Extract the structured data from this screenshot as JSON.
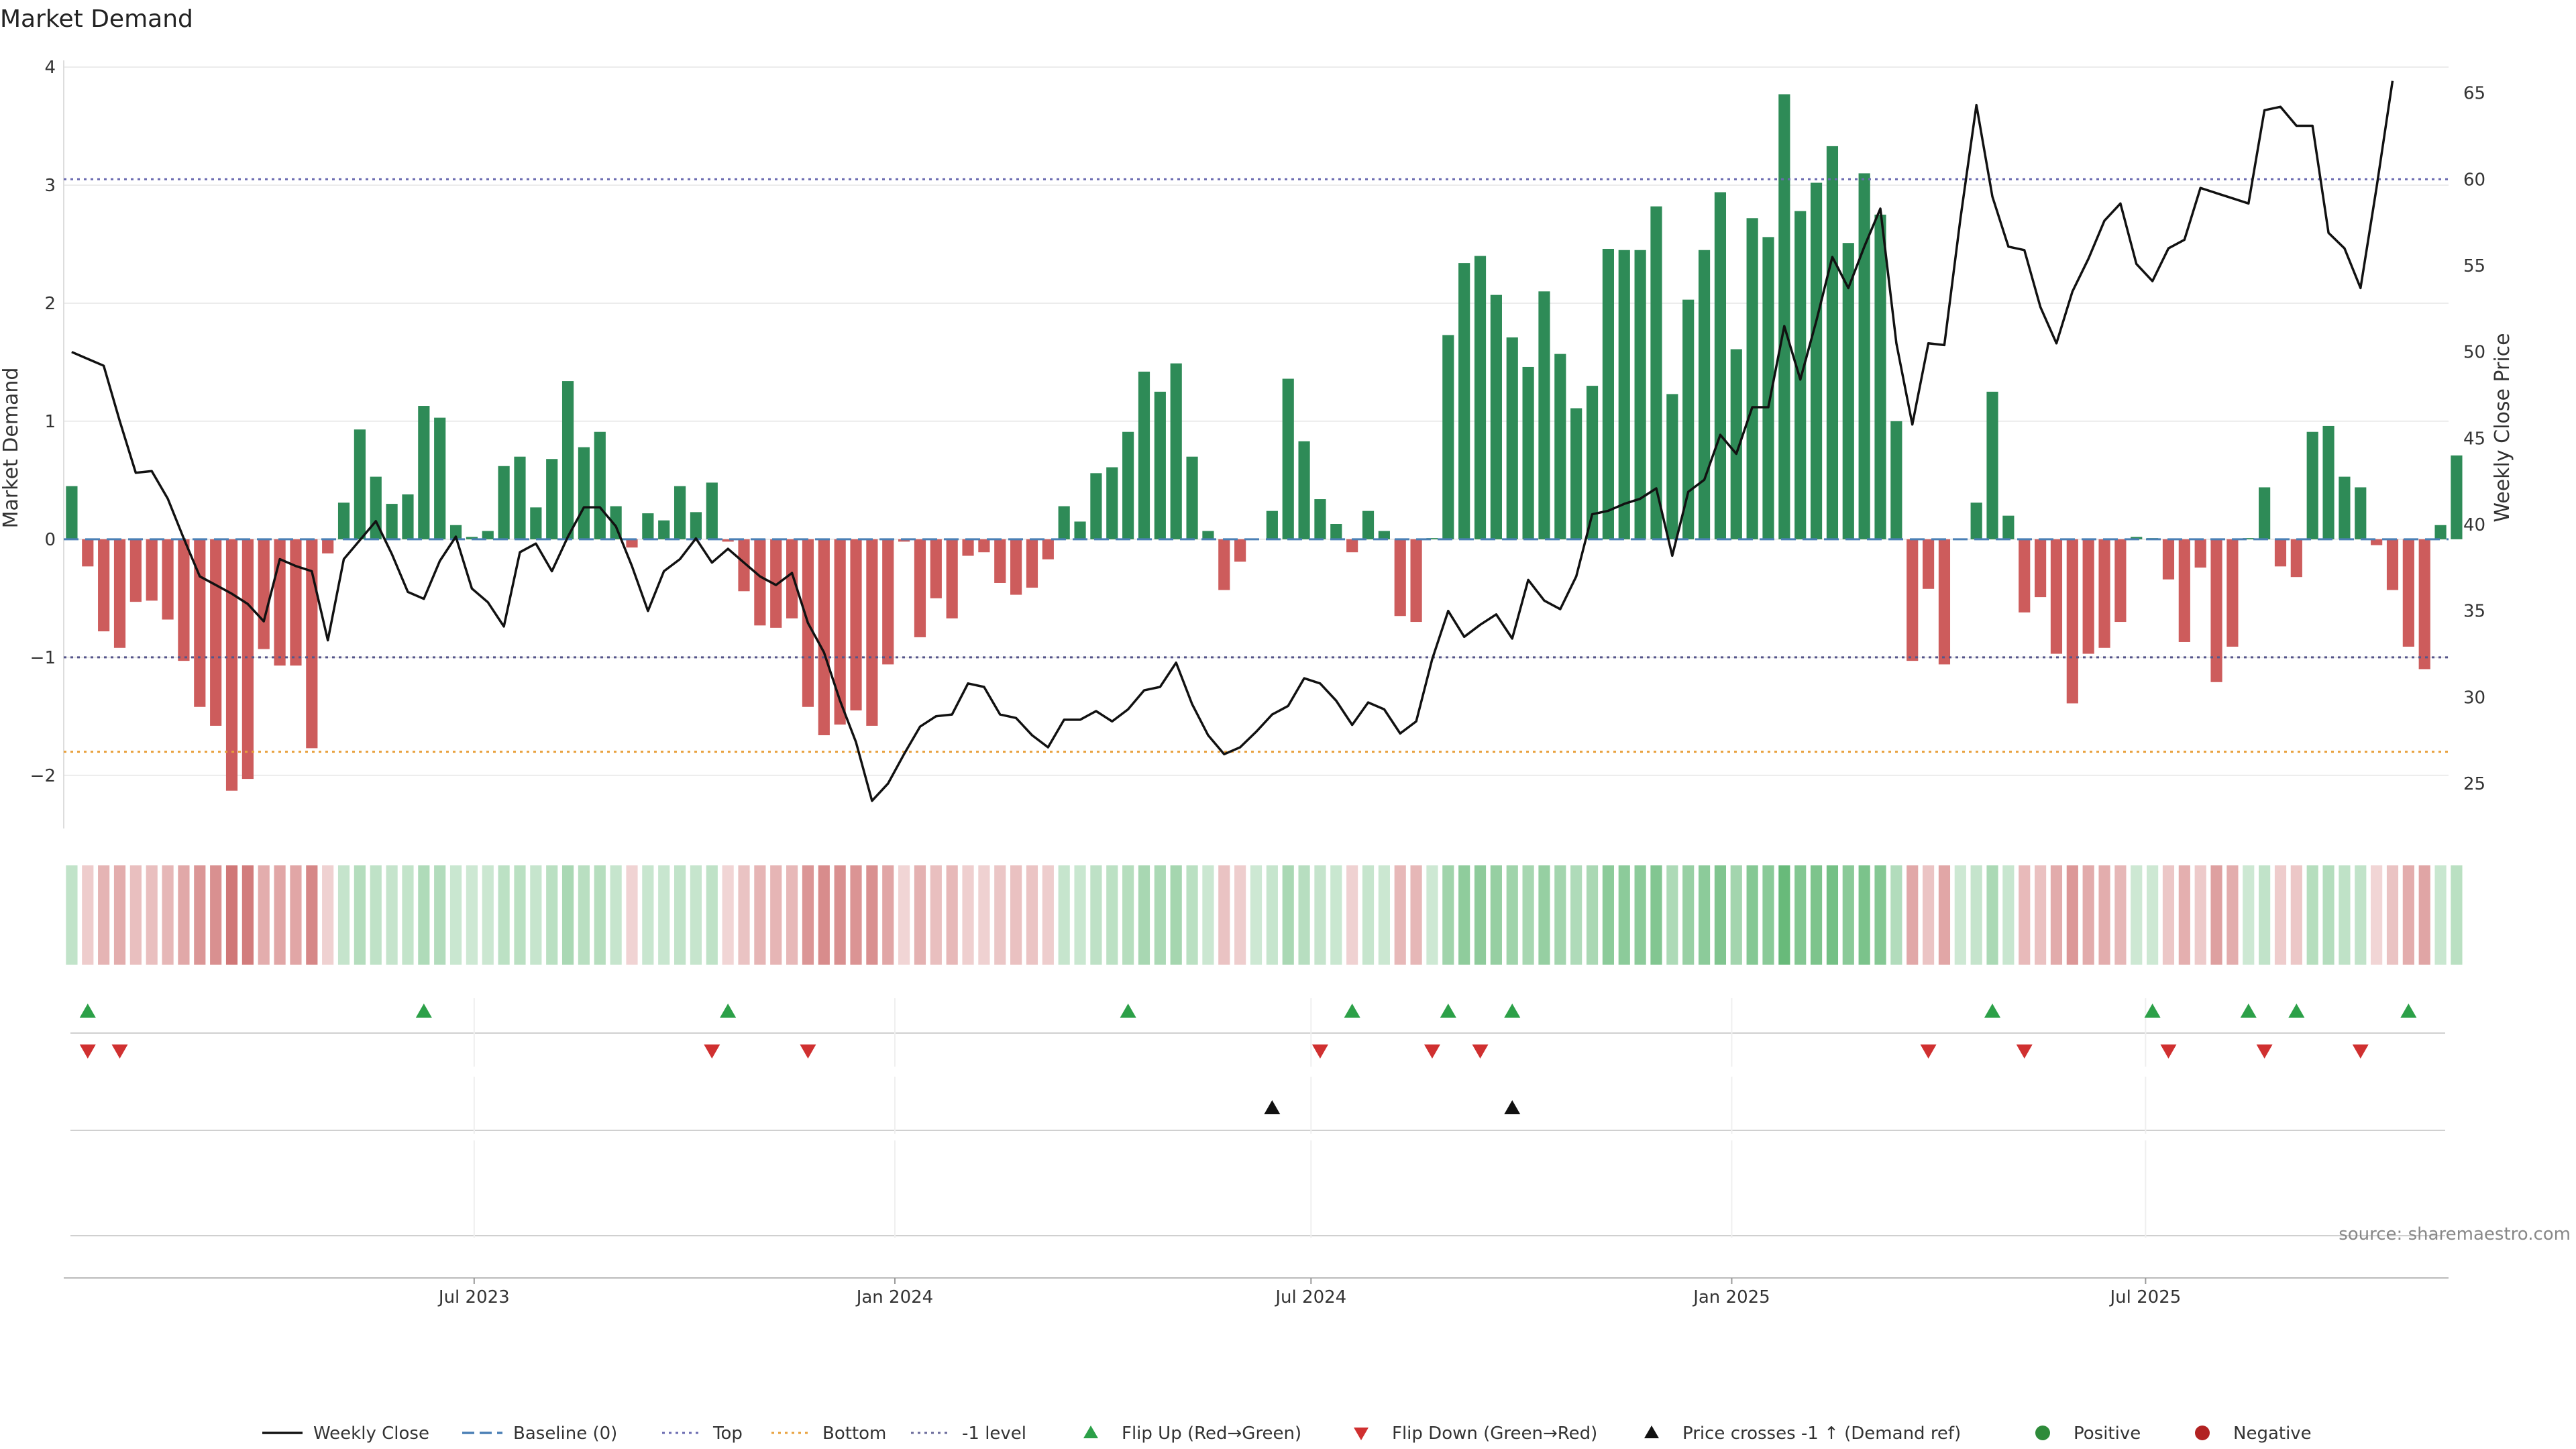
{
  "chart_data": {
    "type": "bar",
    "title": "Market Demand",
    "ylabel": "Market Demand",
    "y2label": "Weekly Close Price",
    "ylim": [
      -2.45,
      4.0
    ],
    "y2lim": [
      22.4,
      66.5
    ],
    "yticks": [
      "4",
      "3",
      "2",
      "1",
      "0",
      "−1",
      "−2"
    ],
    "y2ticks": [
      "65",
      "60",
      "55",
      "50",
      "45",
      "40",
      "35",
      "30",
      "25"
    ],
    "x_start": "2023-01-06",
    "x_step_days": 7,
    "x_end": "2025-11-07",
    "xticks": [
      {
        "label": "Jul 2023",
        "date": "2023-07-01"
      },
      {
        "label": "Jan 2024",
        "date": "2024-01-01"
      },
      {
        "label": "Jul 2024",
        "date": "2024-07-01"
      },
      {
        "label": "Jan 2025",
        "date": "2025-01-01"
      },
      {
        "label": "Jul 2025",
        "date": "2025-07-01"
      }
    ],
    "reference_lines": {
      "baseline": 0,
      "top": 3.05,
      "bottom": -1.8,
      "minus_one": -1.0
    },
    "series": [
      {
        "name": "Market Demand",
        "type": "bar",
        "values": [
          0.45,
          -0.23,
          -0.78,
          -0.92,
          -0.53,
          -0.52,
          -0.68,
          -1.03,
          -1.42,
          -1.58,
          -2.13,
          -2.03,
          -0.93,
          -1.07,
          -1.07,
          -1.77,
          -0.12,
          0.31,
          0.93,
          0.53,
          0.3,
          0.38,
          1.13,
          1.03,
          0.12,
          0.02,
          0.07,
          0.62,
          0.7,
          0.27,
          0.68,
          1.34,
          0.78,
          0.91,
          0.28,
          -0.07,
          0.22,
          0.16,
          0.45,
          0.23,
          0.48,
          -0.02,
          -0.44,
          -0.73,
          -0.75,
          -0.67,
          -1.42,
          -1.66,
          -1.57,
          -1.45,
          -1.58,
          -1.06,
          -0.02,
          -0.83,
          -0.5,
          -0.67,
          -0.14,
          -0.11,
          -0.37,
          -0.47,
          -0.41,
          -0.17,
          0.28,
          0.15,
          0.56,
          0.61,
          0.91,
          1.42,
          1.25,
          1.49,
          0.7,
          0.07,
          -0.43,
          -0.19,
          0.0,
          0.24,
          1.36,
          0.83,
          0.34,
          0.13,
          -0.11,
          0.24,
          0.07,
          -0.65,
          -0.7,
          0.01,
          1.73,
          2.34,
          2.4,
          2.07,
          1.71,
          1.46,
          2.1,
          1.57,
          1.11,
          1.3,
          2.46,
          2.45,
          2.45,
          2.82,
          1.23,
          2.03,
          2.45,
          2.94,
          1.61,
          2.72,
          2.56,
          3.77,
          2.78,
          3.02,
          3.33,
          2.51,
          3.1,
          2.75,
          1.0,
          -1.03,
          -0.42,
          -1.06,
          0.0,
          0.31,
          1.25,
          0.2,
          -0.62,
          -0.49,
          -0.97,
          -1.39,
          -0.97,
          -0.92,
          -0.7,
          0.02,
          0.01,
          -0.34,
          -0.87,
          -0.24,
          -1.21,
          -0.91,
          0.01,
          0.44,
          -0.23,
          -0.32,
          0.91,
          0.96,
          0.53,
          0.44,
          -0.05,
          -0.43,
          -0.91,
          -1.1,
          0.12,
          0.71
        ]
      },
      {
        "name": "Weekly Close",
        "type": "line",
        "values": [
          50.0,
          49.6,
          49.2,
          46.0,
          43.0,
          43.1,
          41.5,
          39.2,
          37.0,
          36.5,
          36.0,
          35.4,
          34.4,
          38.0,
          37.6,
          37.3,
          33.3,
          38.0,
          39.1,
          40.2,
          38.3,
          36.1,
          35.7,
          37.9,
          39.3,
          36.3,
          35.5,
          34.1,
          38.4,
          38.9,
          37.3,
          39.3,
          41.0,
          41.0,
          39.9,
          37.6,
          35.0,
          37.3,
          38.0,
          39.2,
          37.8,
          38.6,
          37.8,
          37.0,
          36.5,
          37.2,
          34.3,
          32.6,
          29.8,
          27.4,
          24.0,
          25.0,
          26.7,
          28.3,
          28.9,
          29.0,
          30.8,
          30.6,
          29.0,
          28.8,
          27.8,
          27.1,
          28.7,
          28.7,
          29.2,
          28.6,
          29.3,
          30.4,
          30.6,
          32.0,
          29.6,
          27.8,
          26.7,
          27.1,
          28.0,
          29.0,
          29.5,
          31.1,
          30.8,
          29.8,
          28.4,
          29.7,
          29.3,
          27.9,
          28.6,
          32.2,
          35.0,
          33.5,
          34.2,
          34.8,
          33.4,
          36.8,
          35.6,
          35.1,
          37.0,
          40.6,
          40.8,
          41.2,
          41.5,
          42.1,
          38.2,
          41.9,
          42.6,
          45.2,
          44.1,
          46.8,
          46.8,
          51.5,
          48.4,
          51.8,
          55.5,
          53.7,
          56.1,
          58.3,
          50.5,
          45.8,
          50.5,
          50.4,
          57.7,
          64.3,
          59.0,
          56.1,
          55.9,
          52.6,
          50.5,
          53.5,
          55.4,
          57.6,
          58.6,
          55.1,
          54.1,
          56.0,
          56.5,
          59.5,
          59.2,
          58.9,
          58.6,
          64.0,
          64.2,
          63.1,
          63.1,
          56.9,
          56.0,
          53.7,
          59.5,
          65.7
        ]
      }
    ],
    "strip": {
      "levels": [
        0.45,
        -0.23,
        -0.78,
        -0.92,
        -0.53,
        -0.52,
        -0.68,
        -1.03,
        -1.42,
        -1.58,
        -2.13,
        -2.03,
        -0.93,
        -1.07,
        -1.07,
        -1.77,
        -0.12,
        0.31,
        0.93,
        0.53,
        0.3,
        0.38,
        1.13,
        1.03,
        0.12,
        0.02,
        0.07,
        0.62,
        0.7,
        0.27,
        0.68,
        1.34,
        0.78,
        0.91,
        0.28,
        -0.07,
        0.22,
        0.16,
        0.45,
        0.23,
        0.48,
        -0.02,
        -0.44,
        -0.73,
        -0.75,
        -0.67,
        -1.42,
        -1.66,
        -1.57,
        -1.45,
        -1.58,
        -1.06,
        -0.02,
        -0.83,
        -0.5,
        -0.67,
        -0.14,
        -0.11,
        -0.37,
        -0.47,
        -0.41,
        -0.17,
        0.28,
        0.15,
        0.56,
        0.61,
        0.91,
        1.42,
        1.25,
        1.49,
        0.7,
        0.07,
        -0.43,
        -0.19,
        0.0,
        0.24,
        1.36,
        0.83,
        0.34,
        0.13,
        -0.11,
        0.24,
        0.07,
        -0.65,
        -0.7,
        0.01,
        1.73,
        2.34,
        2.4,
        2.07,
        1.71,
        1.46,
        2.1,
        1.57,
        1.11,
        1.3,
        2.46,
        2.45,
        2.45,
        2.82,
        1.23,
        2.03,
        2.45,
        2.94,
        1.61,
        2.72,
        2.56,
        3.77,
        2.78,
        3.02,
        3.33,
        2.51,
        3.1,
        2.75,
        1.0,
        -1.03,
        -0.42,
        -1.06,
        0.0,
        0.31,
        1.25,
        0.2,
        -0.62,
        -0.49,
        -0.97,
        -1.39,
        -0.97,
        -0.92,
        -0.7,
        0.02,
        0.01,
        -0.34,
        -0.87,
        -0.24,
        -1.21,
        -0.91,
        0.01,
        0.44,
        -0.23,
        -0.32,
        0.91,
        0.96,
        0.53,
        0.44,
        -0.05,
        -0.43,
        -0.91,
        -1.1,
        0.12,
        0.71
      ]
    },
    "flip_up_dates": [
      "2023-01-13",
      "2023-06-09",
      "2023-10-20",
      "2024-04-12",
      "2024-07-19",
      "2024-08-30",
      "2024-09-27",
      "2025-04-25",
      "2025-07-04",
      "2025-08-15",
      "2025-09-05",
      "2025-10-24"
    ],
    "flip_down_dates": [
      "2023-01-13",
      "2023-01-27",
      "2023-10-13",
      "2023-11-24",
      "2024-07-05",
      "2024-08-23",
      "2024-09-13",
      "2025-03-28",
      "2025-05-09",
      "2025-07-11",
      "2025-08-22",
      "2025-10-03"
    ],
    "price_cross_dates": [
      "2024-06-14",
      "2024-09-27"
    ],
    "legend_position": "bottom-center",
    "grid": true
  },
  "legend": [
    {
      "label": "Weekly Close",
      "kind": "line",
      "color": "#111111"
    },
    {
      "label": "Baseline (0)",
      "kind": "dash",
      "color": "#4a7fb5"
    },
    {
      "label": "Top",
      "kind": "dot",
      "color": "#6a6ab0"
    },
    {
      "label": "Bottom",
      "kind": "dot",
      "color": "#e8a03c"
    },
    {
      "label": "-1 level",
      "kind": "dot",
      "color": "#6a6a9a"
    },
    {
      "label": "Flip Up (Red→Green)",
      "kind": "tri-up",
      "color": "#2ca048"
    },
    {
      "label": "Flip Down (Green→Red)",
      "kind": "tri-down",
      "color": "#d03030"
    },
    {
      "label": "Price crosses -1 ↑ (Demand ref)",
      "kind": "tri-up",
      "color": "#111111"
    },
    {
      "label": "Positive",
      "kind": "dot-circle",
      "color": "#2e8b3a"
    },
    {
      "label": "Negative",
      "kind": "dot-circle",
      "color": "#b22222"
    }
  ],
  "source": "source: sharemaestro.com",
  "colors": {
    "bar_pos": "#2e8b57",
    "bar_neg": "#cd5c5c",
    "line": "#111111",
    "strip_pos": "#58b36c",
    "strip_neg": "#c75b5b"
  }
}
